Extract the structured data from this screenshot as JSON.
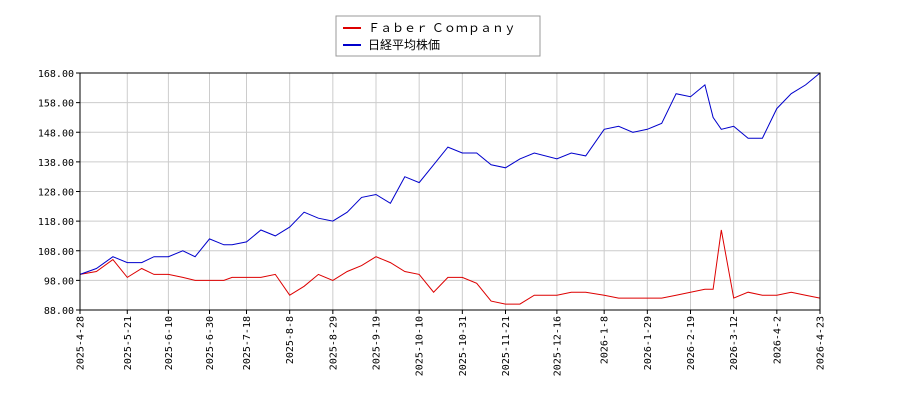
{
  "chart_data": {
    "type": "line",
    "title": "",
    "xlabel": "",
    "ylabel": "",
    "ylim": [
      88,
      168
    ],
    "grid": true,
    "legend_position": "top-center",
    "y_ticks": [
      "88.00",
      "98.00",
      "108.00",
      "118.00",
      "128.00",
      "138.00",
      "148.00",
      "158.00",
      "168.00"
    ],
    "x_ticks": [
      "2025-4-28",
      "2025-5-21",
      "2025-6-10",
      "2025-6-30",
      "2025-7-18",
      "2025-8-8",
      "2025-8-29",
      "2025-9-19",
      "2025-10-10",
      "2025-10-31",
      "2025-11-21",
      "2025-12-16",
      "2026-1-8",
      "2026-1-29",
      "2026-2-19",
      "2026-3-12",
      "2026-4-2",
      "2026-4-23"
    ],
    "x": [
      "2025-4-28",
      "2025-5-6",
      "2025-5-14",
      "2025-5-21",
      "2025-5-28",
      "2025-6-3",
      "2025-6-10",
      "2025-6-17",
      "2025-6-23",
      "2025-6-30",
      "2025-7-7",
      "2025-7-11",
      "2025-7-18",
      "2025-7-25",
      "2025-8-1",
      "2025-8-8",
      "2025-8-15",
      "2025-8-22",
      "2025-8-29",
      "2025-9-5",
      "2025-9-12",
      "2025-9-19",
      "2025-9-26",
      "2025-10-3",
      "2025-10-10",
      "2025-10-17",
      "2025-10-24",
      "2025-10-31",
      "2025-11-7",
      "2025-11-14",
      "2025-11-21",
      "2025-11-28",
      "2025-12-5",
      "2025-12-16",
      "2025-12-23",
      "2025-12-30",
      "2026-1-8",
      "2026-1-15",
      "2026-1-22",
      "2026-1-29",
      "2026-2-5",
      "2026-2-12",
      "2026-2-19",
      "2026-2-26",
      "2026-3-2",
      "2026-3-6",
      "2026-3-12",
      "2026-3-19",
      "2026-3-26",
      "2026-4-2",
      "2026-4-9",
      "2026-4-16",
      "2026-4-23"
    ],
    "series": [
      {
        "name": "Ｆａｂｅｒ Ｃｏｍｐａｎｙ",
        "color": "#dd0000",
        "values": [
          100,
          101,
          105,
          99,
          102,
          100,
          100,
          99,
          98,
          98,
          98,
          99,
          99,
          99,
          100,
          93,
          96,
          100,
          98,
          101,
          103,
          106,
          104,
          101,
          100,
          94,
          99,
          99,
          97,
          91,
          90,
          90,
          93,
          93,
          94,
          94,
          93,
          92,
          92,
          92,
          92,
          93,
          94,
          95,
          95,
          115,
          92,
          94,
          93,
          93,
          94,
          93,
          92
        ]
      },
      {
        "name": "日経平均株価",
        "color": "#0000cc",
        "values": [
          100,
          102,
          106,
          104,
          104,
          106,
          106,
          108,
          106,
          112,
          110,
          110,
          111,
          115,
          113,
          116,
          121,
          119,
          118,
          121,
          126,
          127,
          124,
          133,
          131,
          137,
          143,
          141,
          141,
          137,
          136,
          139,
          141,
          139,
          141,
          140,
          149,
          150,
          148,
          149,
          151,
          161,
          160,
          164,
          153,
          149,
          150,
          146,
          146,
          156,
          161,
          164,
          168
        ]
      }
    ]
  }
}
